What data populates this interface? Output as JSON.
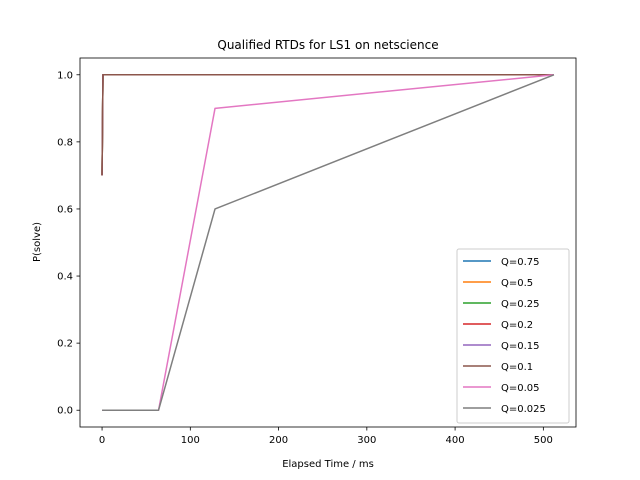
{
  "chart_data": {
    "type": "line",
    "title": "Qualified RTDs for LS1 on netscience",
    "xlabel": "Elapsed Time / ms",
    "ylabel": "P(solve)",
    "xlim": [
      -25,
      537
    ],
    "ylim": [
      -0.05,
      1.05
    ],
    "xticks": [
      0,
      100,
      200,
      300,
      400,
      500
    ],
    "yticks": [
      0.0,
      0.2,
      0.4,
      0.6,
      0.8,
      1.0
    ],
    "xtick_labels": [
      "0",
      "100",
      "200",
      "300",
      "400",
      "500"
    ],
    "ytick_labels": [
      "0.0",
      "0.2",
      "0.4",
      "0.6",
      "0.8",
      "1.0"
    ],
    "grid": false,
    "legend_position": "lower-right",
    "series": [
      {
        "name": "Q=0.75",
        "color": "#1f77b4",
        "x": [
          0,
          1,
          512
        ],
        "y": [
          0.7,
          1.0,
          1.0
        ]
      },
      {
        "name": "Q=0.5",
        "color": "#ff7f0e",
        "x": [
          0,
          1,
          512
        ],
        "y": [
          0.7,
          1.0,
          1.0
        ]
      },
      {
        "name": "Q=0.25",
        "color": "#2ca02c",
        "x": [
          0,
          1,
          512
        ],
        "y": [
          0.7,
          1.0,
          1.0
        ]
      },
      {
        "name": "Q=0.2",
        "color": "#d62728",
        "x": [
          0,
          1,
          512
        ],
        "y": [
          0.7,
          1.0,
          1.0
        ]
      },
      {
        "name": "Q=0.15",
        "color": "#9467bd",
        "x": [
          0,
          1,
          512
        ],
        "y": [
          0.7,
          1.0,
          1.0
        ]
      },
      {
        "name": "Q=0.1",
        "color": "#8c564b",
        "x": [
          0,
          1,
          512
        ],
        "y": [
          0.7,
          1.0,
          1.0
        ]
      },
      {
        "name": "Q=0.05",
        "color": "#e377c2",
        "x": [
          0,
          64,
          128,
          512
        ],
        "y": [
          0.0,
          0.0,
          0.9,
          1.0
        ]
      },
      {
        "name": "Q=0.025",
        "color": "#7f7f7f",
        "x": [
          0,
          64,
          128,
          512
        ],
        "y": [
          0.0,
          0.0,
          0.6,
          1.0
        ]
      }
    ]
  }
}
